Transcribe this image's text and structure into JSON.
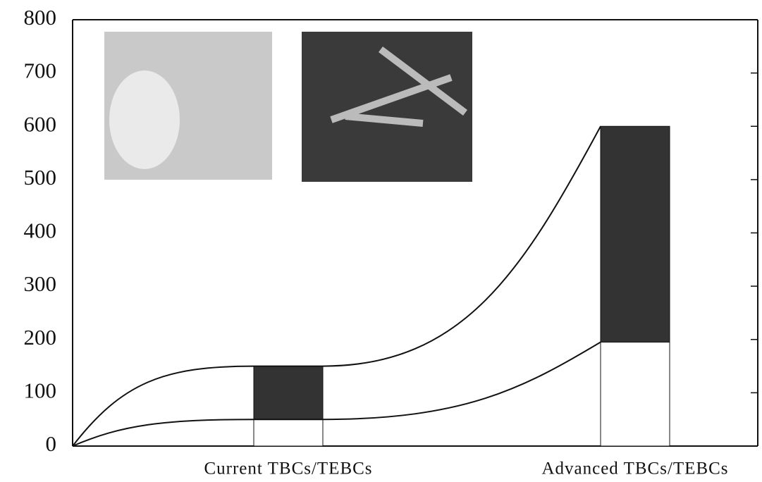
{
  "chart_data": {
    "type": "bar",
    "stacked": true,
    "categories": [
      "Current TBCs/TEBCs",
      "Advanced TBCs/TEBCs"
    ],
    "series": [
      {
        "color": "#ffffff",
        "values": [
          50,
          195
        ]
      },
      {
        "color": "#333333",
        "values": [
          100,
          405
        ]
      }
    ],
    "ylim": [
      0,
      800
    ],
    "yticks": [
      0,
      100,
      200,
      300,
      400,
      500,
      600,
      700,
      800
    ],
    "grid": false
  }
}
